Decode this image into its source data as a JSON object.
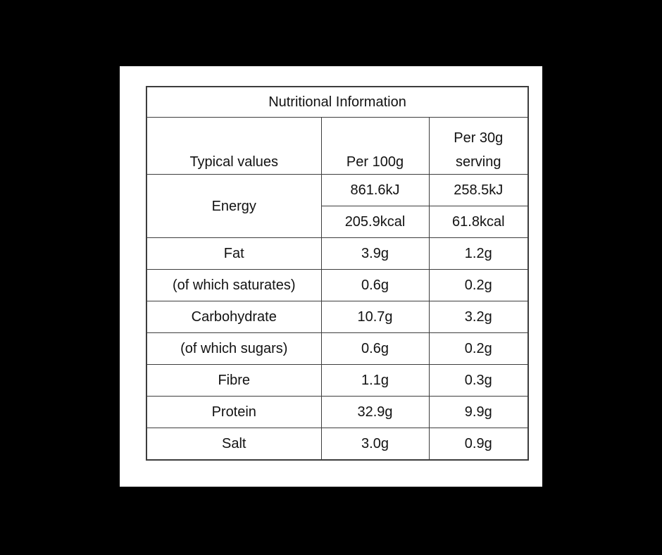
{
  "title": "Nutritional Information",
  "headers": [
    "Typical values",
    "Per 100g",
    "Per 30g serving"
  ],
  "energy": {
    "label": "Energy",
    "kj": {
      "per100": "861.6kJ",
      "per30": "258.5kJ"
    },
    "kcal": {
      "per100": "205.9kcal",
      "per30": "61.8kcal"
    }
  },
  "rows": [
    {
      "label": "Fat",
      "per100": "3.9g",
      "per30": "1.2g"
    },
    {
      "label": "(of which saturates)",
      "per100": "0.6g",
      "per30": "0.2g"
    },
    {
      "label": "Carbohydrate",
      "per100": "10.7g",
      "per30": "3.2g"
    },
    {
      "label": "(of which sugars)",
      "per100": "0.6g",
      "per30": "0.2g"
    },
    {
      "label": "Fibre",
      "per100": "1.1g",
      "per30": "0.3g"
    },
    {
      "label": "Protein",
      "per100": "32.9g",
      "per30": "9.9g"
    },
    {
      "label": "Salt",
      "per100": "3.0g",
      "per30": "0.9g"
    }
  ],
  "colors": {
    "background": "#000000",
    "panel": "#ffffff",
    "border": "#3d3d3d",
    "text": "#121212"
  }
}
